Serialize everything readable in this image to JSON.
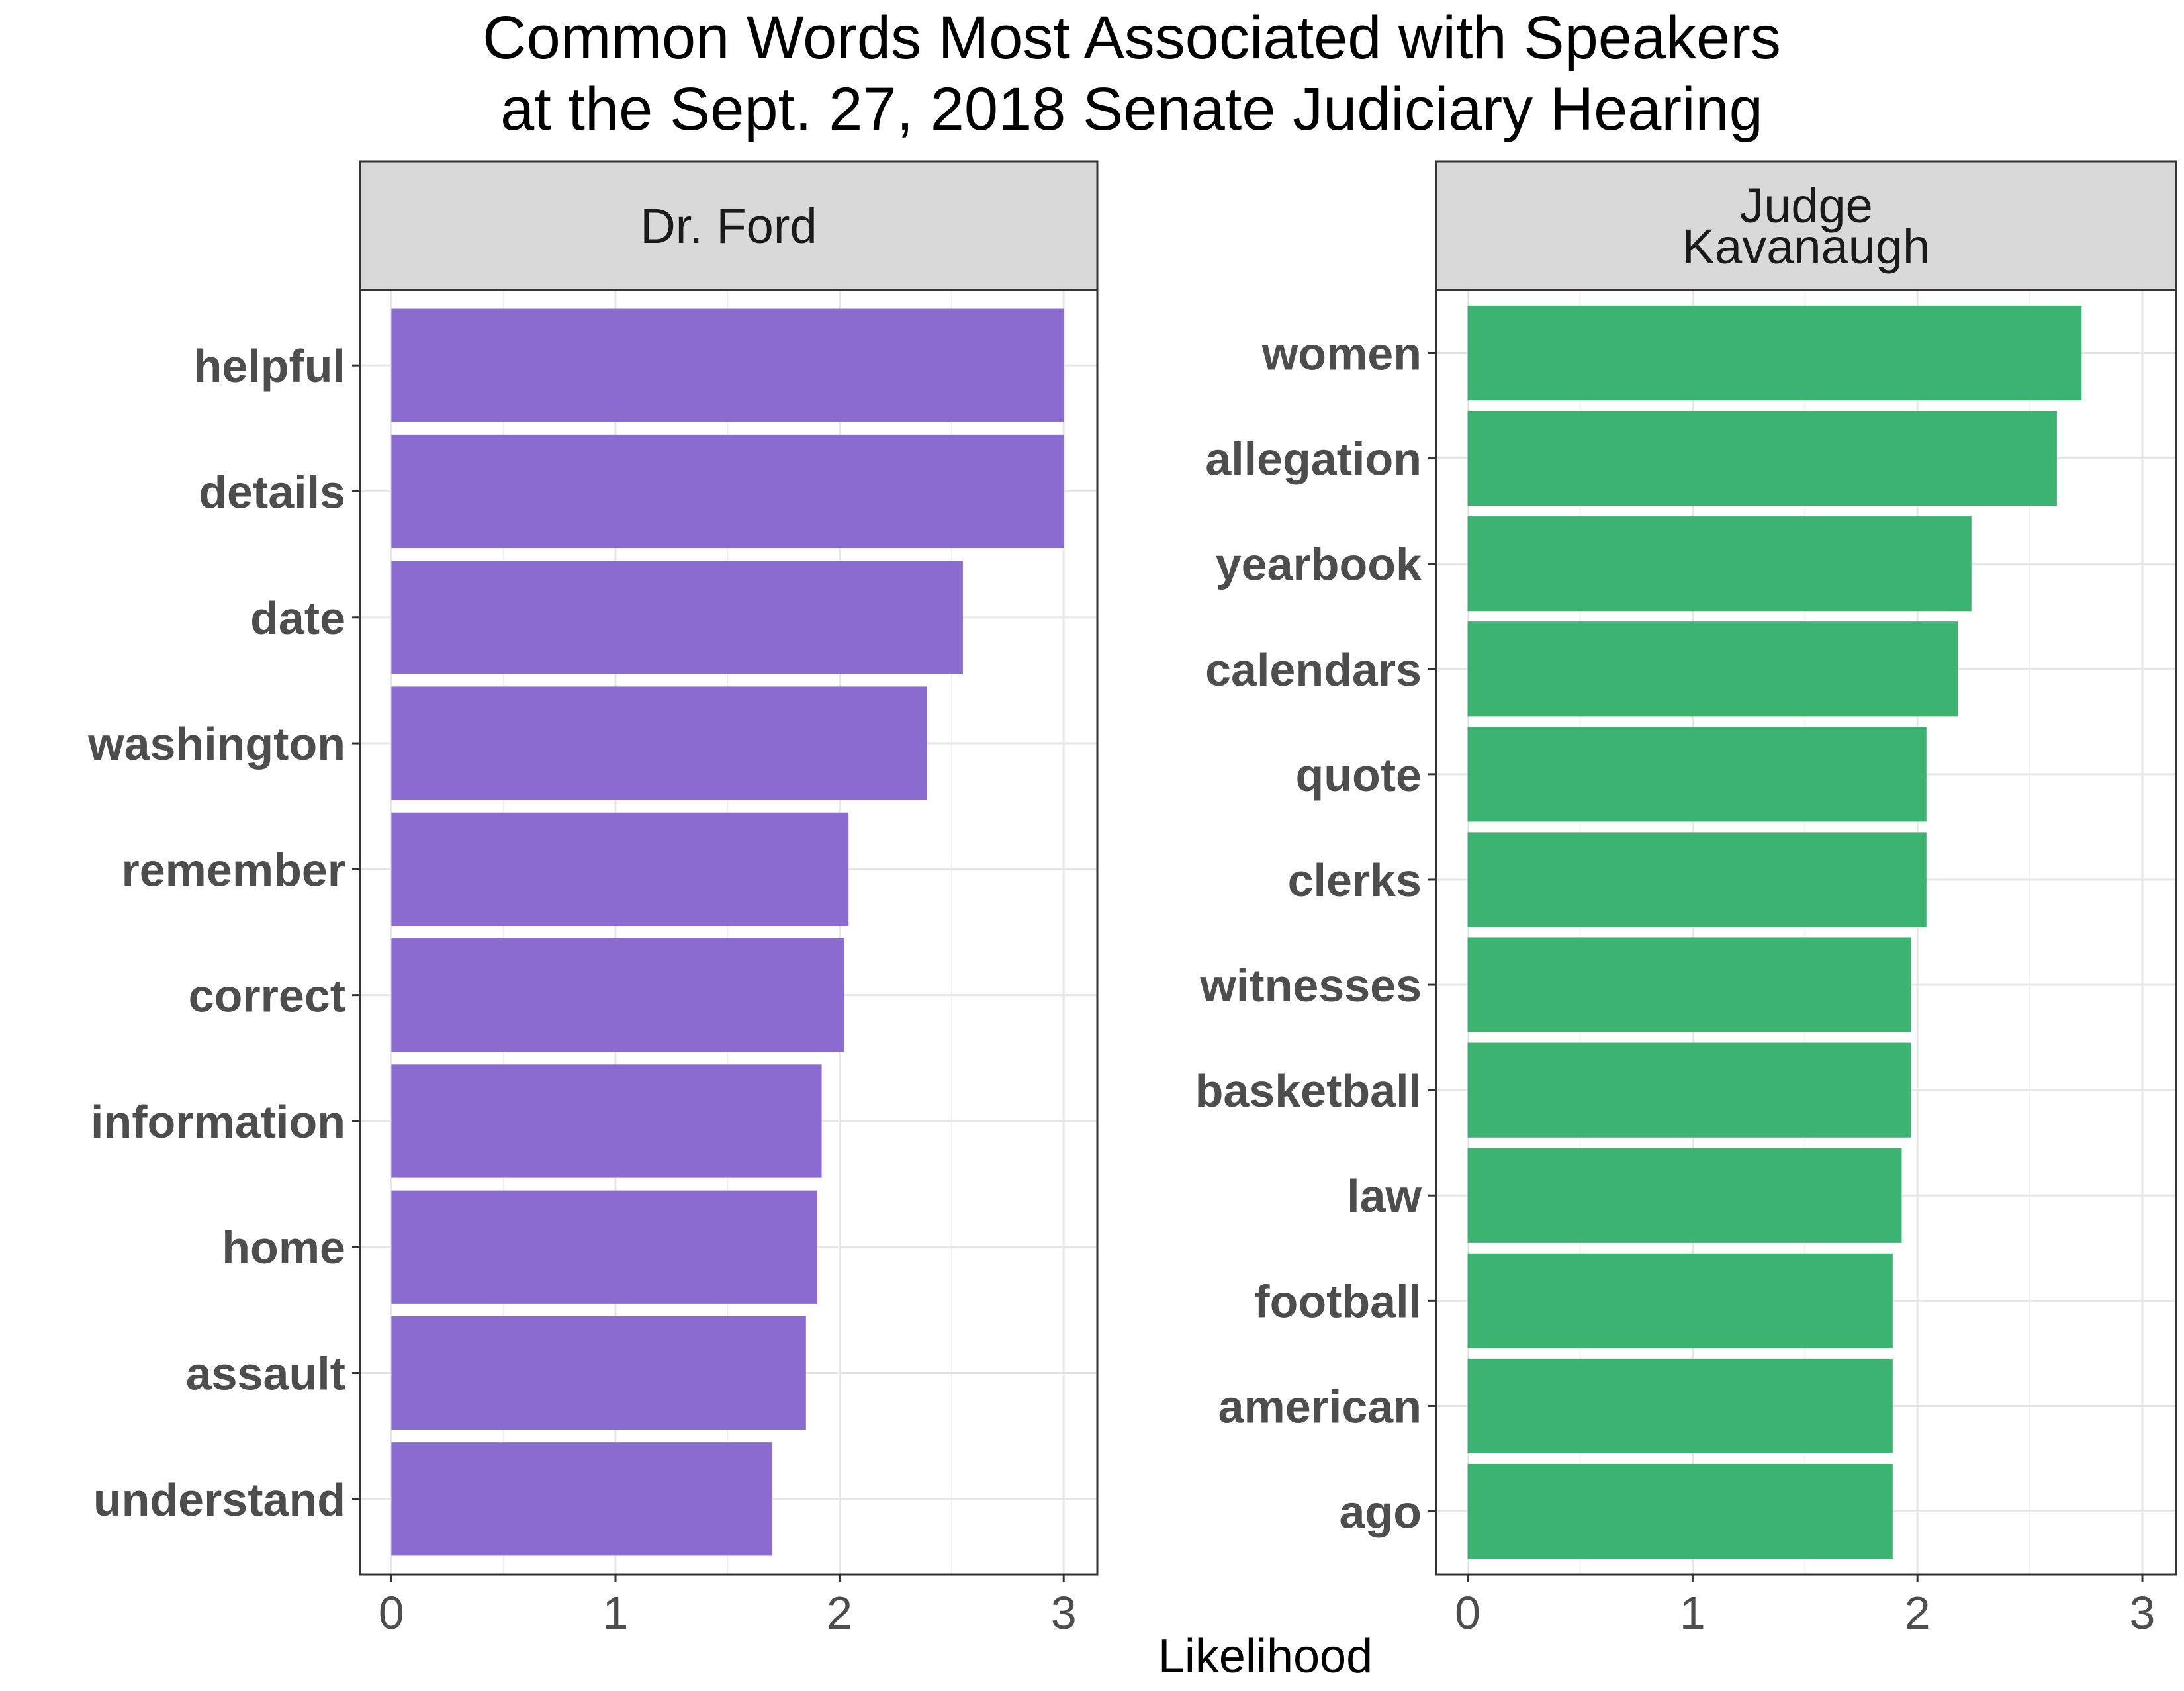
{
  "title": "Common Words Most Associated with Speakers",
  "subtitle": "at the Sept. 27, 2018 Senate Judiciary Hearing",
  "xlabel": "Likelihood",
  "chart_data": [
    {
      "type": "bar",
      "orientation": "horizontal",
      "panel_label_lines": [
        "Dr. Ford"
      ],
      "categories": [
        "helpful",
        "details",
        "date",
        "washington",
        "remember",
        "correct",
        "information",
        "home",
        "assault",
        "understand"
      ],
      "values": [
        3.0,
        3.0,
        2.55,
        2.39,
        2.04,
        2.02,
        1.92,
        1.9,
        1.85,
        1.7
      ],
      "color": "#8A6BCF",
      "xlim": [
        -0.14,
        3.15
      ],
      "xticks": [
        0,
        1,
        2,
        3
      ],
      "grid": true
    },
    {
      "type": "bar",
      "orientation": "horizontal",
      "panel_label_lines": [
        "Judge",
        "Kavanaugh"
      ],
      "categories": [
        "women",
        "allegation",
        "yearbook",
        "calendars",
        "quote",
        "clerks",
        "witnesses",
        "basketball",
        "law",
        "football",
        "american",
        "ago"
      ],
      "values": [
        2.73,
        2.62,
        2.24,
        2.18,
        2.04,
        2.04,
        1.97,
        1.97,
        1.93,
        1.89,
        1.89,
        1.89
      ],
      "color": "#3CB371",
      "xlim": [
        -0.14,
        3.15
      ],
      "xticks": [
        0,
        1,
        2,
        3
      ],
      "grid": true
    }
  ]
}
